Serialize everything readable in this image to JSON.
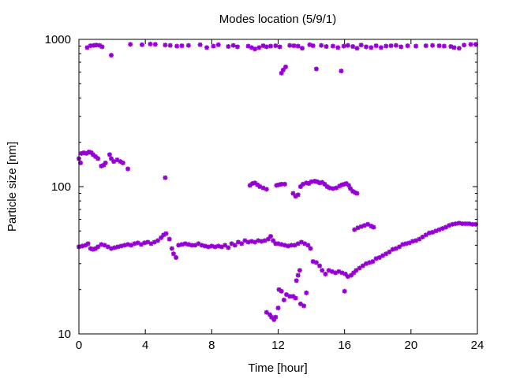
{
  "chart_data": {
    "type": "scatter",
    "title": "Modes location (5/9/1)",
    "xlabel": "Time [hour]",
    "ylabel": "Particle size [nm]",
    "xlim": [
      0,
      24
    ],
    "ylim": [
      10,
      1000
    ],
    "yscale": "log",
    "x_ticks": [
      0,
      4,
      8,
      12,
      16,
      20,
      24
    ],
    "x_tick_labels": [
      "0",
      "4",
      "8",
      "12",
      "16",
      "20",
      "24"
    ],
    "y_ticks": [
      10,
      100,
      1000
    ],
    "y_tick_labels": [
      "10",
      "100",
      "1000"
    ],
    "grid": false,
    "legend": "none",
    "marker_color": "#9400d3",
    "series": [
      {
        "name": "",
        "points": [
          [
            0,
            155
          ],
          [
            0.1,
            145
          ],
          [
            0.15,
            168
          ],
          [
            0.3,
            170
          ],
          [
            0.45,
            168
          ],
          [
            0.6,
            172
          ],
          [
            0.75,
            170
          ],
          [
            0.85,
            165
          ],
          [
            1.0,
            160
          ],
          [
            1.15,
            155
          ],
          [
            1.35,
            138
          ],
          [
            1.5,
            140
          ],
          [
            1.6,
            145
          ],
          [
            1.85,
            165
          ],
          [
            1.95,
            155
          ],
          [
            2.1,
            148
          ],
          [
            2.3,
            152
          ],
          [
            2.5,
            148
          ],
          [
            2.65,
            145
          ],
          [
            2.95,
            132
          ],
          [
            5.2,
            115
          ],
          [
            10.3,
            102
          ],
          [
            10.45,
            105
          ],
          [
            10.6,
            106
          ],
          [
            10.75,
            103
          ],
          [
            10.9,
            100
          ],
          [
            11.1,
            98
          ],
          [
            11.3,
            96
          ],
          [
            11.9,
            102
          ],
          [
            12.05,
            103
          ],
          [
            12.2,
            104
          ],
          [
            12.4,
            104
          ],
          [
            12.9,
            90
          ],
          [
            13.05,
            86
          ],
          [
            13.2,
            88
          ],
          [
            13.35,
            100
          ],
          [
            13.5,
            104
          ],
          [
            13.7,
            106
          ],
          [
            13.85,
            105
          ],
          [
            14.0,
            108
          ],
          [
            14.2,
            109
          ],
          [
            14.35,
            108
          ],
          [
            14.5,
            106
          ],
          [
            14.65,
            107
          ],
          [
            14.8,
            104
          ],
          [
            14.95,
            100
          ],
          [
            15.1,
            98
          ],
          [
            15.3,
            97
          ],
          [
            15.5,
            98
          ],
          [
            15.7,
            101
          ],
          [
            15.85,
            103
          ],
          [
            16.0,
            104
          ],
          [
            16.1,
            105
          ],
          [
            16.25,
            102
          ],
          [
            16.35,
            97
          ],
          [
            16.5,
            93
          ],
          [
            16.65,
            91
          ],
          [
            16.75,
            90
          ],
          [
            0.5,
            880
          ],
          [
            0.7,
            905
          ],
          [
            0.9,
            910
          ],
          [
            1.05,
            915
          ],
          [
            1.25,
            910
          ],
          [
            1.4,
            890
          ],
          [
            1.95,
            780
          ],
          [
            3.1,
            925
          ],
          [
            3.8,
            920
          ],
          [
            4.3,
            930
          ],
          [
            4.6,
            925
          ],
          [
            5.2,
            915
          ],
          [
            5.5,
            910
          ],
          [
            5.9,
            900
          ],
          [
            6.2,
            905
          ],
          [
            6.6,
            910
          ],
          [
            7.3,
            920
          ],
          [
            7.7,
            880
          ],
          [
            8.1,
            900
          ],
          [
            8.4,
            920
          ],
          [
            9.0,
            895
          ],
          [
            9.3,
            910
          ],
          [
            9.55,
            890
          ],
          [
            10.2,
            900
          ],
          [
            10.4,
            880
          ],
          [
            10.6,
            860
          ],
          [
            10.85,
            880
          ],
          [
            11.1,
            905
          ],
          [
            11.3,
            890
          ],
          [
            11.55,
            900
          ],
          [
            11.85,
            905
          ],
          [
            12.1,
            890
          ],
          [
            12.2,
            590
          ],
          [
            12.3,
            620
          ],
          [
            12.45,
            650
          ],
          [
            12.7,
            910
          ],
          [
            12.95,
            905
          ],
          [
            13.2,
            900
          ],
          [
            13.45,
            870
          ],
          [
            13.9,
            920
          ],
          [
            14.1,
            905
          ],
          [
            14.3,
            630
          ],
          [
            14.6,
            910
          ],
          [
            14.9,
            895
          ],
          [
            15.3,
            900
          ],
          [
            15.6,
            880
          ],
          [
            15.8,
            610
          ],
          [
            15.95,
            900
          ],
          [
            16.2,
            910
          ],
          [
            16.5,
            895
          ],
          [
            16.75,
            870
          ],
          [
            17.0,
            915
          ],
          [
            17.3,
            890
          ],
          [
            17.6,
            880
          ],
          [
            17.9,
            905
          ],
          [
            18.2,
            880
          ],
          [
            18.5,
            900
          ],
          [
            18.8,
            905
          ],
          [
            19.1,
            910
          ],
          [
            19.4,
            890
          ],
          [
            19.8,
            905
          ],
          [
            20.3,
            900
          ],
          [
            20.9,
            905
          ],
          [
            21.3,
            910
          ],
          [
            21.7,
            905
          ],
          [
            22.0,
            900
          ],
          [
            22.4,
            895
          ],
          [
            22.6,
            880
          ],
          [
            22.9,
            870
          ],
          [
            23.2,
            915
          ],
          [
            23.6,
            925
          ],
          [
            23.9,
            925
          ],
          [
            0,
            39
          ],
          [
            0.2,
            39.5
          ],
          [
            0.4,
            40
          ],
          [
            0.55,
            41
          ],
          [
            0.7,
            38
          ],
          [
            0.85,
            37.5
          ],
          [
            1.0,
            38
          ],
          [
            1.15,
            39
          ],
          [
            1.35,
            40.5
          ],
          [
            1.55,
            40
          ],
          [
            1.75,
            39
          ],
          [
            1.95,
            38
          ],
          [
            2.15,
            38.5
          ],
          [
            2.35,
            39
          ],
          [
            2.55,
            39.5
          ],
          [
            2.75,
            40
          ],
          [
            2.95,
            40.5
          ],
          [
            3.15,
            40
          ],
          [
            3.35,
            41
          ],
          [
            3.55,
            41.5
          ],
          [
            3.75,
            40.5
          ],
          [
            3.95,
            41.5
          ],
          [
            4.15,
            42
          ],
          [
            4.35,
            41
          ],
          [
            4.55,
            42
          ],
          [
            4.75,
            43
          ],
          [
            4.95,
            45
          ],
          [
            5.1,
            47
          ],
          [
            5.25,
            48
          ],
          [
            5.45,
            44
          ],
          [
            5.6,
            38
          ],
          [
            5.7,
            35
          ],
          [
            5.85,
            33
          ],
          [
            6.0,
            40
          ],
          [
            6.2,
            40.5
          ],
          [
            6.4,
            41
          ],
          [
            6.6,
            40.5
          ],
          [
            6.8,
            40
          ],
          [
            7.0,
            40
          ],
          [
            7.2,
            41
          ],
          [
            7.4,
            40
          ],
          [
            7.6,
            39.5
          ],
          [
            7.8,
            39
          ],
          [
            8.0,
            39.5
          ],
          [
            8.2,
            39
          ],
          [
            8.4,
            39.5
          ],
          [
            8.6,
            39
          ],
          [
            8.8,
            40
          ],
          [
            9.0,
            38.5
          ],
          [
            9.2,
            41
          ],
          [
            9.4,
            40
          ],
          [
            9.6,
            42
          ],
          [
            9.8,
            41
          ],
          [
            10.0,
            43
          ],
          [
            10.2,
            42
          ],
          [
            10.4,
            42.5
          ],
          [
            10.6,
            42
          ],
          [
            10.8,
            43
          ],
          [
            11.0,
            42.5
          ],
          [
            11.2,
            43
          ],
          [
            11.4,
            44
          ],
          [
            11.55,
            46
          ],
          [
            11.7,
            43
          ],
          [
            11.85,
            41
          ],
          [
            12.0,
            41
          ],
          [
            12.2,
            40.5
          ],
          [
            12.4,
            40
          ],
          [
            12.6,
            39.5
          ],
          [
            12.8,
            40
          ],
          [
            13.0,
            40
          ],
          [
            13.2,
            41
          ],
          [
            13.4,
            42
          ],
          [
            13.6,
            41
          ],
          [
            13.8,
            40
          ],
          [
            13.95,
            38
          ],
          [
            14.1,
            31
          ],
          [
            14.3,
            30.5
          ],
          [
            14.5,
            29
          ],
          [
            14.65,
            27
          ],
          [
            14.85,
            25.5
          ],
          [
            15.05,
            27
          ],
          [
            15.25,
            26.5
          ],
          [
            15.45,
            26
          ],
          [
            15.65,
            26.5
          ],
          [
            15.85,
            26
          ],
          [
            16.05,
            25.5
          ],
          [
            16.2,
            24.5
          ],
          [
            16.4,
            25
          ],
          [
            16.55,
            26
          ],
          [
            16.7,
            27
          ],
          [
            16.9,
            28
          ],
          [
            17.1,
            29
          ],
          [
            17.3,
            30
          ],
          [
            17.5,
            30.5
          ],
          [
            17.7,
            31
          ],
          [
            17.9,
            32.5
          ],
          [
            18.1,
            33
          ],
          [
            18.3,
            34
          ],
          [
            18.5,
            35
          ],
          [
            18.7,
            36
          ],
          [
            18.9,
            37.5
          ],
          [
            19.1,
            38
          ],
          [
            19.3,
            39
          ],
          [
            19.5,
            40.5
          ],
          [
            19.7,
            41
          ],
          [
            19.9,
            41.5
          ],
          [
            20.1,
            42.5
          ],
          [
            20.3,
            43
          ],
          [
            20.5,
            44
          ],
          [
            20.7,
            45.5
          ],
          [
            20.9,
            47
          ],
          [
            21.1,
            48.5
          ],
          [
            21.3,
            49
          ],
          [
            21.5,
            50
          ],
          [
            21.7,
            51
          ],
          [
            21.9,
            52
          ],
          [
            22.1,
            53
          ],
          [
            22.3,
            54.5
          ],
          [
            22.5,
            55.5
          ],
          [
            22.7,
            56
          ],
          [
            22.9,
            56.5
          ],
          [
            23.1,
            56
          ],
          [
            23.3,
            56
          ],
          [
            23.5,
            56
          ],
          [
            23.7,
            55.5
          ],
          [
            23.9,
            55.5
          ],
          [
            11.3,
            14
          ],
          [
            11.5,
            13.5
          ],
          [
            11.6,
            13
          ],
          [
            11.75,
            12.5
          ],
          [
            11.85,
            13
          ],
          [
            12.0,
            15
          ],
          [
            12.05,
            20
          ],
          [
            12.2,
            19.5
          ],
          [
            12.35,
            17
          ],
          [
            12.5,
            18.5
          ],
          [
            12.7,
            18
          ],
          [
            12.9,
            18
          ],
          [
            13.05,
            17.5
          ],
          [
            13.1,
            23
          ],
          [
            13.2,
            25
          ],
          [
            13.3,
            27
          ],
          [
            13.35,
            16
          ],
          [
            13.55,
            15.5
          ],
          [
            13.7,
            19
          ],
          [
            16.0,
            19.5
          ],
          [
            16.6,
            51
          ],
          [
            16.8,
            52.5
          ],
          [
            17.0,
            53.5
          ],
          [
            17.2,
            54.5
          ],
          [
            17.4,
            55.5
          ],
          [
            17.6,
            54
          ],
          [
            17.75,
            53
          ]
        ]
      }
    ]
  }
}
